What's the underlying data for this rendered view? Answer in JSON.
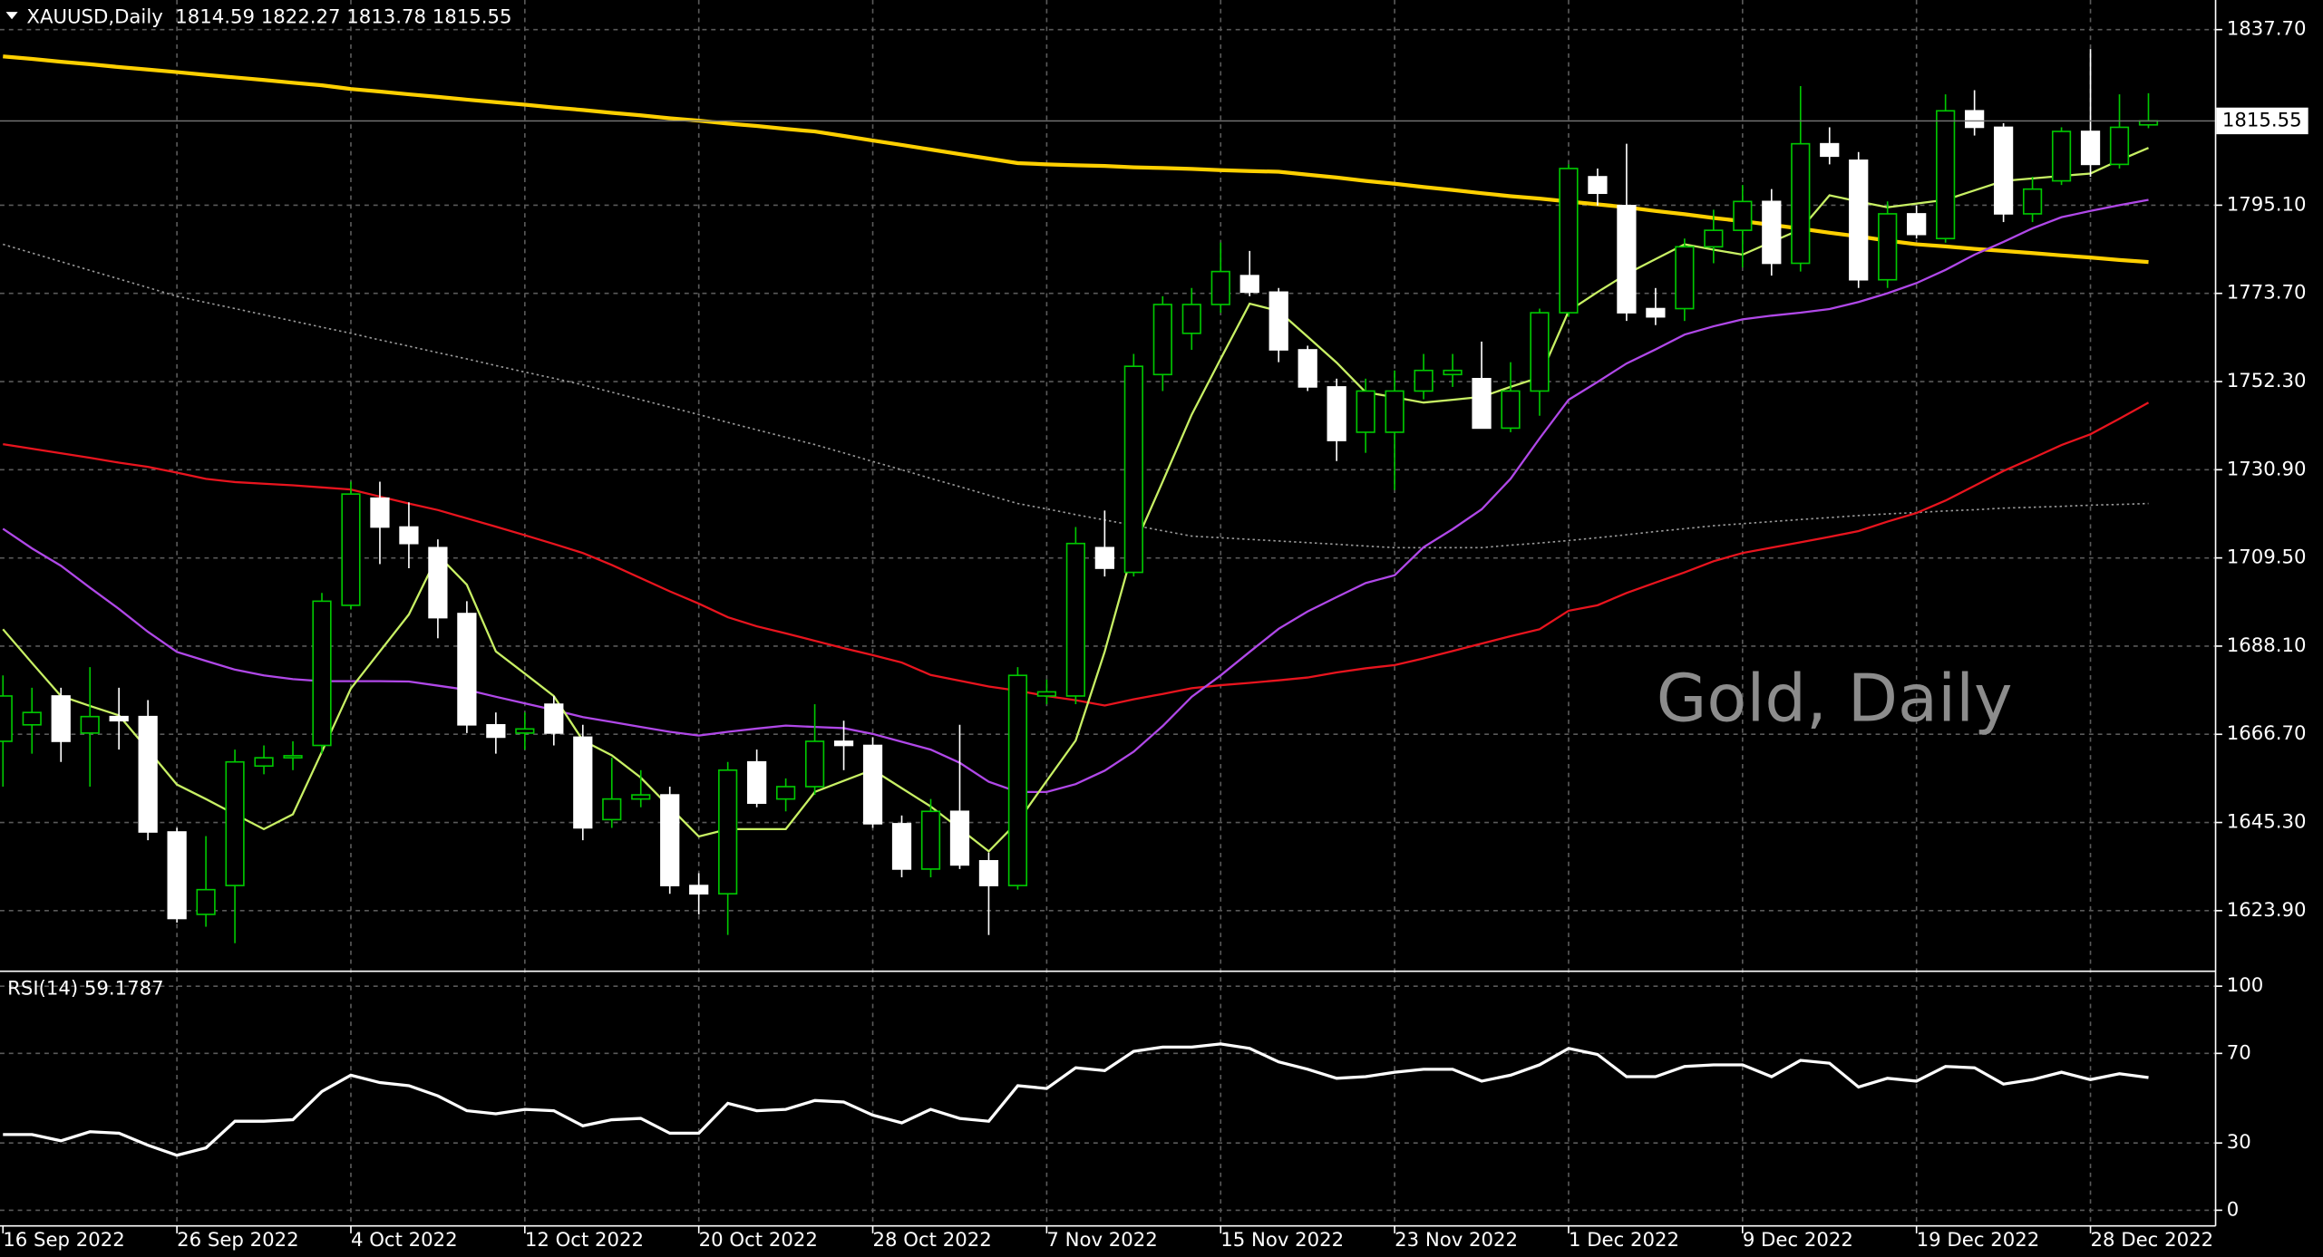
{
  "chart_data": {
    "type": "candlestick",
    "header": "XAUUSD,Daily  1814.59 1822.27 1813.78 1815.55",
    "watermark": "Gold, Daily",
    "categories": [
      "16 Sep 2022",
      null,
      null,
      null,
      null,
      null,
      "26 Sep 2022",
      null,
      null,
      null,
      null,
      null,
      "4 Oct 2022",
      null,
      null,
      null,
      null,
      null,
      "12 Oct 2022",
      null,
      null,
      null,
      null,
      null,
      "20 Oct 2022",
      null,
      null,
      null,
      null,
      null,
      "28 Oct 2022",
      null,
      null,
      null,
      null,
      null,
      "7 Nov 2022",
      null,
      null,
      null,
      null,
      null,
      "15 Nov 2022",
      null,
      null,
      null,
      null,
      null,
      "23 Nov 2022",
      null,
      null,
      null,
      null,
      null,
      "1 Dec 2022",
      null,
      null,
      null,
      null,
      null,
      "9 Dec 2022",
      null,
      null,
      null,
      null,
      null,
      "19 Dec 2022",
      null,
      null,
      null,
      null,
      null,
      "28 Dec 2022",
      null,
      null
    ],
    "open": [
      1665,
      1669,
      1676,
      1667,
      1671,
      1671,
      1643,
      1623,
      1630,
      1659,
      1661,
      1664,
      1698,
      1724,
      1717,
      1712,
      1696,
      1669,
      1667,
      1674,
      1666,
      1646,
      1651,
      1652,
      1630,
      1628,
      1660,
      1651,
      1654,
      1665,
      1664,
      1645,
      1634,
      1648,
      1636,
      1630,
      1676,
      1676,
      1712,
      1706,
      1754,
      1764,
      1771,
      1778,
      1774,
      1760,
      1751,
      1740,
      1740,
      1750,
      1754,
      1753,
      1741,
      1750,
      1769,
      1802,
      1795,
      1770,
      1770,
      1785,
      1789,
      1796,
      1781,
      1810,
      1806,
      1777,
      1793,
      1787,
      1818,
      1814,
      1793,
      1801,
      1813,
      1805,
      1814.59
    ],
    "high": [
      1681,
      1678,
      1678,
      1683,
      1678,
      1675,
      1644,
      1642,
      1663,
      1664,
      1665,
      1701,
      1728,
      1728,
      1723,
      1714,
      1699,
      1672,
      1672,
      1676,
      1669,
      1661,
      1658,
      1654,
      1633,
      1660,
      1663,
      1656,
      1674,
      1670,
      1666,
      1647,
      1651,
      1669,
      1638,
      1683,
      1680,
      1717,
      1721,
      1759,
      1773,
      1775,
      1786,
      1784,
      1775,
      1761,
      1753,
      1753,
      1755,
      1759,
      1759,
      1762,
      1757,
      1770,
      1805,
      1804,
      1810,
      1775,
      1787,
      1794,
      1800,
      1799,
      1824,
      1814,
      1808,
      1796,
      1795,
      1822,
      1823,
      1815,
      1802,
      1814,
      1833,
      1822,
      1822.27
    ],
    "low": [
      1654,
      1662,
      1660,
      1654,
      1663,
      1641,
      1621,
      1620,
      1616,
      1657,
      1658,
      1662,
      1697,
      1708,
      1707,
      1690,
      1667,
      1662,
      1663,
      1664,
      1641,
      1644,
      1649,
      1628,
      1623,
      1618,
      1649,
      1648,
      1652,
      1658,
      1644,
      1632,
      1632,
      1634,
      1618,
      1629,
      1674,
      1674,
      1705,
      1705,
      1750,
      1760,
      1769,
      1773,
      1757,
      1750,
      1733,
      1735,
      1726,
      1748,
      1751,
      1741,
      1740,
      1744,
      1768,
      1795,
      1767,
      1766,
      1767,
      1781,
      1780,
      1778,
      1779,
      1805,
      1775,
      1775,
      1787,
      1786,
      1812,
      1791,
      1791,
      1800,
      1802,
      1804,
      1813.78
    ],
    "close": [
      1676,
      1672,
      1665,
      1671,
      1670,
      1643,
      1622,
      1629,
      1660,
      1661,
      1661.5,
      1699,
      1725,
      1717,
      1713,
      1695,
      1669,
      1666,
      1668,
      1667,
      1644,
      1651,
      1652,
      1630,
      1628,
      1658,
      1650,
      1654,
      1665,
      1664,
      1645,
      1634,
      1648,
      1635,
      1630,
      1681,
      1677,
      1713,
      1707,
      1756,
      1771,
      1771,
      1779,
      1774,
      1760,
      1751,
      1738,
      1750,
      1750,
      1755,
      1755,
      1741,
      1750,
      1769,
      1804,
      1798,
      1769,
      1768,
      1785,
      1789,
      1796,
      1781,
      1810,
      1807,
      1777,
      1793,
      1788,
      1818,
      1814,
      1793,
      1799,
      1813,
      1805,
      1814,
      1815.55
    ],
    "up_color": "#00c800",
    "down_color": "#ffffff",
    "series": [
      {
        "color": "#9a9a9a",
        "style": "dotted",
        "values": [
          1785.6,
          1783.5,
          1781.4,
          1779.3,
          1777.2,
          1775.1,
          1773.0,
          1771.5,
          1770.0,
          1768.5,
          1767.0,
          1765.5,
          1764.0,
          1762.4,
          1760.9,
          1759.3,
          1757.8,
          1756.2,
          1754.6,
          1753.1,
          1751.5,
          1749.7,
          1747.9,
          1746.1,
          1744.3,
          1742.4,
          1740.6,
          1738.8,
          1737.0,
          1735.0,
          1732.9,
          1730.9,
          1728.8,
          1726.8,
          1724.7,
          1722.7,
          1721.4,
          1720.0,
          1718.7,
          1717.4,
          1716.1,
          1714.8,
          1714.4,
          1714.0,
          1713.6,
          1713.2,
          1712.8,
          1712.4,
          1712.0,
          1712.0,
          1712.0,
          1712.0,
          1712.6,
          1713.1,
          1713.7,
          1714.4,
          1715.1,
          1715.9,
          1716.6,
          1717.3,
          1717.8,
          1718.3,
          1718.8,
          1719.3,
          1719.8,
          1720.2,
          1720.5,
          1720.9,
          1721.2,
          1721.6,
          1721.8,
          1722.0,
          1722.3,
          1722.5,
          1722.7
        ]
      },
      {
        "color": "#ffd000",
        "style": "thick",
        "values": [
          1831.2,
          1830.6,
          1829.9,
          1829.3,
          1828.6,
          1828.0,
          1827.4,
          1826.7,
          1826.1,
          1825.5,
          1824.8,
          1824.2,
          1823.3,
          1822.7,
          1822.0,
          1821.4,
          1820.7,
          1820.1,
          1819.5,
          1818.8,
          1818.2,
          1817.5,
          1816.9,
          1816.2,
          1815.6,
          1814.9,
          1814.3,
          1813.6,
          1813.0,
          1811.9,
          1810.8,
          1809.7,
          1808.6,
          1807.5,
          1806.4,
          1805.3,
          1805.0,
          1804.8,
          1804.6,
          1804.3,
          1804.1,
          1803.9,
          1803.6,
          1803.4,
          1803.2,
          1802.5,
          1801.8,
          1801.0,
          1800.3,
          1799.5,
          1798.8,
          1798.0,
          1797.3,
          1796.7,
          1796.0,
          1795.3,
          1794.6,
          1793.7,
          1792.9,
          1792.0,
          1791.2,
          1790.3,
          1789.4,
          1788.4,
          1787.5,
          1786.5,
          1785.6,
          1785.1,
          1784.5,
          1784.0,
          1783.5,
          1782.9,
          1782.4,
          1781.8,
          1781.3
        ]
      },
      {
        "color": "#e8141e",
        "style": "solid",
        "values": [
          1737.1,
          1736.0,
          1734.9,
          1733.8,
          1732.6,
          1731.6,
          1730.2,
          1728.7,
          1727.9,
          1727.5,
          1727.1,
          1726.6,
          1726.1,
          1724.4,
          1722.7,
          1721.1,
          1719.1,
          1717.1,
          1715.0,
          1712.9,
          1710.7,
          1707.8,
          1704.6,
          1701.4,
          1698.4,
          1695.1,
          1692.9,
          1691.2,
          1689.4,
          1687.6,
          1685.9,
          1684.1,
          1681.1,
          1679.7,
          1678.3,
          1677.3,
          1676.0,
          1675.0,
          1673.7,
          1675.2,
          1676.5,
          1677.9,
          1678.6,
          1679.2,
          1679.8,
          1680.5,
          1681.7,
          1682.7,
          1683.5,
          1685.1,
          1686.9,
          1688.7,
          1690.5,
          1692.2,
          1696.7,
          1698.0,
          1701.0,
          1703.5,
          1706.0,
          1708.7,
          1710.7,
          1712.0,
          1713.3,
          1714.6,
          1716.0,
          1718.3,
          1720.4,
          1723.4,
          1727.0,
          1730.6,
          1733.7,
          1736.9,
          1739.5,
          1743.3,
          1747.2
        ]
      },
      {
        "color": "#b048e8",
        "style": "solid",
        "values": [
          1716.6,
          1711.8,
          1707.6,
          1702.3,
          1697.1,
          1691.6,
          1686.7,
          1684.5,
          1682.4,
          1681.0,
          1680.1,
          1679.6,
          1679.6,
          1679.6,
          1679.5,
          1678.5,
          1677.5,
          1675.8,
          1674.2,
          1672.6,
          1670.9,
          1669.7,
          1668.5,
          1667.3,
          1666.4,
          1667.3,
          1668.1,
          1668.8,
          1668.5,
          1668.2,
          1666.8,
          1664.9,
          1663.0,
          1659.8,
          1655.2,
          1652.7,
          1652.7,
          1654.6,
          1657.9,
          1662.5,
          1668.7,
          1675.8,
          1681.0,
          1686.7,
          1692.3,
          1696.5,
          1700.0,
          1703.4,
          1705.3,
          1712.1,
          1716.5,
          1721.3,
          1728.7,
          1738.5,
          1747.9,
          1752.2,
          1756.7,
          1760.1,
          1763.7,
          1765.7,
          1767.4,
          1768.3,
          1769.0,
          1769.9,
          1771.6,
          1773.7,
          1776.2,
          1779.4,
          1783.1,
          1786.2,
          1789.5,
          1792.2,
          1793.7,
          1795.1,
          1796.4
        ]
      },
      {
        "color": "#c8f064",
        "style": "solid",
        "values": [
          1692.2,
          1684,
          1676.0,
          1673.6,
          1671.3,
          1663,
          1654.5,
          1651,
          1647.3,
          1643.7,
          1647.3,
          1662.5,
          1677.8,
          1686.8,
          1695.8,
          1710.2,
          1703,
          1686.8,
          1681.4,
          1676,
          1665.2,
          1661.6,
          1656.2,
          1649,
          1641.9,
          1643.7,
          1643.7,
          1643.7,
          1652.7,
          1655.4,
          1658.1,
          1653.6,
          1649.2,
          1643.8,
          1638.3,
          1645.5,
          1655.4,
          1665.2,
          1686.8,
          1712,
          1728,
          1744.3,
          1757.8,
          1771.2,
          1769.4,
          1763.2,
          1756.9,
          1749.7,
          1748.5,
          1747.2,
          1747.9,
          1748.6,
          1751,
          1753.3,
          1769.4,
          1774,
          1778.4,
          1782,
          1785.6,
          1784.3,
          1783.1,
          1786.2,
          1789.2,
          1797.5,
          1796,
          1794.6,
          1795.5,
          1796.4,
          1798.7,
          1801.0,
          1801.6,
          1802.2,
          1802.8,
          1806,
          1809
        ]
      }
    ],
    "ylim": [
      1609.56,
      1844.89
    ],
    "yticks": [
      {
        "value": 1837.7,
        "label": "1837.70"
      },
      {
        "value": 1795.1,
        "label": "1795.10"
      },
      {
        "value": 1773.7,
        "label": "1773.70"
      },
      {
        "value": 1752.3,
        "label": "1752.30"
      },
      {
        "value": 1730.9,
        "label": "1730.90"
      },
      {
        "value": 1709.5,
        "label": "1709.50"
      },
      {
        "value": 1688.1,
        "label": "1688.10"
      },
      {
        "value": 1666.7,
        "label": "1666.70"
      },
      {
        "value": 1645.3,
        "label": "1645.30"
      },
      {
        "value": 1623.9,
        "label": "1623.90"
      }
    ],
    "last_price": {
      "value": 1815.55,
      "label": "1815.55"
    },
    "grid": true,
    "indicator": {
      "title": "RSI(14) 59.1787",
      "color": "#ffffff",
      "ylim": [
        -7,
        106
      ],
      "yticks": [
        0,
        30,
        70,
        100
      ],
      "values": [
        33.8,
        33.8,
        31,
        35,
        34.4,
        29,
        24.5,
        27.8,
        39.7,
        39.7,
        40.4,
        53,
        60.3,
        57,
        55.6,
        51,
        44.4,
        43,
        45,
        44.4,
        37.7,
        40.4,
        41,
        34.4,
        34.4,
        47.7,
        44.4,
        45,
        49,
        48.3,
        42.4,
        39,
        45,
        41,
        39.7,
        55.6,
        54.3,
        63.6,
        62.3,
        70.9,
        72.8,
        72.8,
        74.2,
        72.2,
        66.2,
        62.9,
        58.9,
        59.6,
        61.6,
        62.9,
        62.9,
        57.6,
        60.3,
        64.9,
        72.2,
        69.5,
        59.6,
        59.6,
        64.2,
        64.9,
        64.9,
        59.6,
        66.9,
        65.6,
        55,
        58.9,
        57.6,
        64.2,
        63.6,
        56.3,
        58.3,
        61.6,
        58.3,
        60.9,
        59.2
      ]
    }
  }
}
